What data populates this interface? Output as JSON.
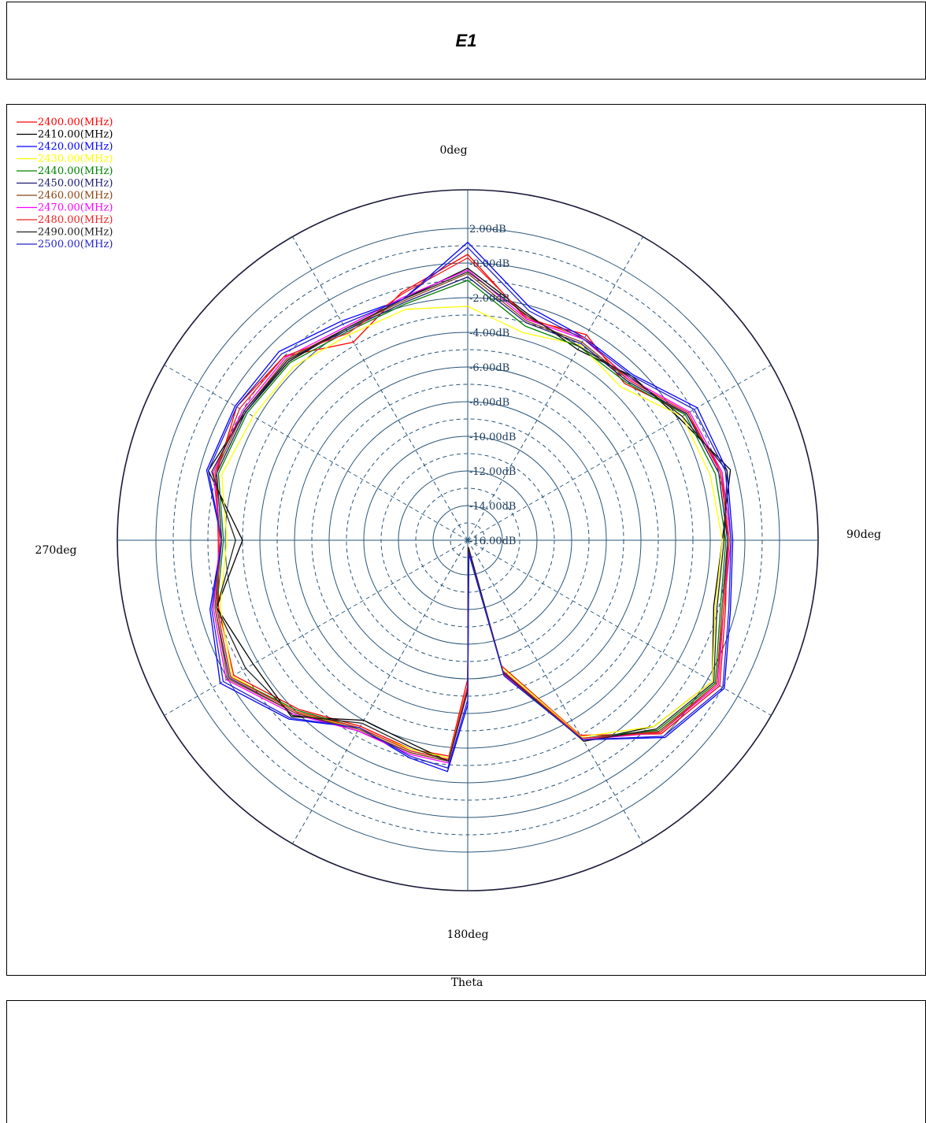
{
  "title": "E1",
  "bottom_label": "Theta",
  "chart_data": {
    "type": "polar",
    "title": "E1",
    "angle_unit": "deg",
    "angle_labels": [
      "0deg",
      "90deg",
      "180deg",
      "270deg"
    ],
    "radial_ticks": [
      {
        "value": 2,
        "label": "2.00dB"
      },
      {
        "value": 0,
        "label": "0.00dB"
      },
      {
        "value": -2,
        "label": "2.00dB"
      },
      {
        "value": -4,
        "label": "4.00dB"
      },
      {
        "value": -6,
        "label": "6.00dB"
      },
      {
        "value": -8,
        "label": "8.00dB"
      },
      {
        "value": -10,
        "label": "10.00dB"
      },
      {
        "value": -12,
        "label": "12.00dB"
      },
      {
        "value": -14,
        "label": "14.00dB"
      },
      {
        "value": -16,
        "label": "16.00dB"
      }
    ],
    "rlim": [
      -16,
      2
    ],
    "grid": true,
    "legend_position": "top-left",
    "theta": [
      0,
      15,
      30,
      45,
      60,
      75,
      90,
      105,
      120,
      135,
      150,
      165,
      175,
      180,
      185,
      195,
      210,
      225,
      240,
      255,
      270,
      285,
      300,
      315,
      330,
      345
    ],
    "series": [
      {
        "name": "2400.00(MHz)",
        "color": "#ff0000",
        "values": [
          0.5,
          -2.8,
          -2.3,
          -3.2,
          -1.4,
          -0.8,
          -1.0,
          -0.6,
          0.8,
          -0.2,
          -3.0,
          -8.5,
          -15.6,
          -8.0,
          -3.5,
          -3.5,
          -3.6,
          -2.2,
          -0.4,
          -1.1,
          -1.6,
          -1.0,
          -0.6,
          -1.0,
          -2.8,
          -1.2
        ]
      },
      {
        "name": "2410.00(MHz)",
        "color": "#000000",
        "values": [
          -0.3,
          -2.5,
          -3.3,
          -2.6,
          -1.9,
          -0.3,
          -1.3,
          -1.3,
          0.3,
          -0.8,
          -2.6,
          -8.2,
          -15.6,
          -7.4,
          -3.2,
          -3.8,
          -4.0,
          -1.6,
          -1.7,
          -1.0,
          -3.0,
          -0.5,
          -1.2,
          -1.4,
          -1.9,
          -1.6
        ]
      },
      {
        "name": "2420.00(MHz)",
        "color": "#0000ff",
        "values": [
          1.2,
          -2.1,
          -2.5,
          -2.5,
          -0.7,
          -0.5,
          -0.7,
          -0.3,
          1.1,
          0.1,
          -2.7,
          -7.9,
          -15.2,
          -6.5,
          -2.6,
          -3.0,
          -3.5,
          -1.4,
          0.5,
          -0.6,
          -1.8,
          -0.4,
          -0.5,
          -0.6,
          -1.4,
          -1.6
        ]
      },
      {
        "name": "2430.00(MHz)",
        "color": "#ffff00",
        "values": [
          -2.5,
          -3.6,
          -3.0,
          -3.5,
          -1.7,
          -1.5,
          -1.3,
          -1.2,
          0.3,
          -0.8,
          -2.9,
          -8.4,
          -15.6,
          -7.6,
          -3.4,
          -3.5,
          -3.4,
          -2.0,
          -0.3,
          -1.2,
          -2.1,
          -1.3,
          -1.7,
          -1.8,
          -2.3,
          -2.2
        ]
      },
      {
        "name": "2440.00(MHz)",
        "color": "#008000",
        "values": [
          -1.0,
          -3.2,
          -3.1,
          -3.1,
          -1.5,
          -1.2,
          -1.1,
          -0.9,
          0.5,
          -0.5,
          -2.8,
          -8.2,
          -15.6,
          -7.5,
          -3.3,
          -3.4,
          -3.5,
          -2.1,
          -0.2,
          -1.0,
          -1.9,
          -1.1,
          -1.3,
          -1.5,
          -2.1,
          -1.9
        ]
      },
      {
        "name": "2450.00(MHz)",
        "color": "#191970",
        "values": [
          -0.8,
          -3.0,
          -2.9,
          -3.0,
          -1.4,
          -1.0,
          -1.0,
          -0.8,
          0.6,
          -0.4,
          -2.8,
          -8.1,
          -15.6,
          -7.4,
          -3.2,
          -3.3,
          -3.3,
          -1.9,
          -0.1,
          -0.9,
          -1.8,
          -1.0,
          -1.2,
          -1.3,
          -2.0,
          -1.8
        ]
      },
      {
        "name": "2460.00(MHz)",
        "color": "#8b4513",
        "values": [
          -0.6,
          -2.9,
          -2.8,
          -2.9,
          -1.3,
          -0.9,
          -0.9,
          -0.8,
          0.6,
          -0.4,
          -2.7,
          -8.1,
          -15.6,
          -7.4,
          -3.2,
          -3.3,
          -3.4,
          -1.9,
          0.0,
          -0.9,
          -1.7,
          -0.9,
          -1.1,
          -1.2,
          -1.9,
          -1.7
        ]
      },
      {
        "name": "2470.00(MHz)",
        "color": "#ff00ff",
        "values": [
          -0.4,
          -2.8,
          -2.6,
          -2.8,
          -1.2,
          -0.8,
          -0.8,
          -0.7,
          0.7,
          -0.3,
          -2.7,
          -8.0,
          -15.6,
          -7.3,
          -3.1,
          -3.2,
          -3.3,
          -1.8,
          0.1,
          -0.8,
          -1.7,
          -0.8,
          -1.0,
          -1.1,
          -1.8,
          -1.5
        ]
      },
      {
        "name": "2480.00(MHz)",
        "color": "#ee2222",
        "values": [
          0.3,
          -2.7,
          -2.5,
          -2.9,
          -1.3,
          -0.9,
          -0.9,
          -0.7,
          0.6,
          -0.3,
          -2.8,
          -8.2,
          -15.6,
          -7.6,
          -3.3,
          -3.4,
          -3.5,
          -2.0,
          -0.2,
          -1.0,
          -1.7,
          -0.9,
          -0.8,
          -1.0,
          -2.2,
          -1.3
        ]
      },
      {
        "name": "2490.00(MHz)",
        "color": "#222222",
        "values": [
          -0.5,
          -2.6,
          -3.1,
          -2.7,
          -1.7,
          -0.5,
          -1.2,
          -1.1,
          0.4,
          -0.6,
          -2.6,
          -8.1,
          -15.6,
          -7.3,
          -3.2,
          -3.6,
          -3.8,
          -1.7,
          -1.2,
          -1.0,
          -2.6,
          -0.7,
          -1.1,
          -1.3,
          -1.9,
          -1.6
        ]
      },
      {
        "name": "2500.00(MHz)",
        "color": "#2222cc",
        "values": [
          0.9,
          -2.3,
          -2.6,
          -2.6,
          -0.9,
          -0.6,
          -0.8,
          -0.4,
          1.0,
          0.0,
          -2.7,
          -7.9,
          -15.3,
          -6.8,
          -2.8,
          -3.1,
          -3.5,
          -1.5,
          0.3,
          -0.7,
          -1.8,
          -0.5,
          -0.6,
          -0.8,
          -1.6,
          -1.6
        ]
      }
    ]
  }
}
